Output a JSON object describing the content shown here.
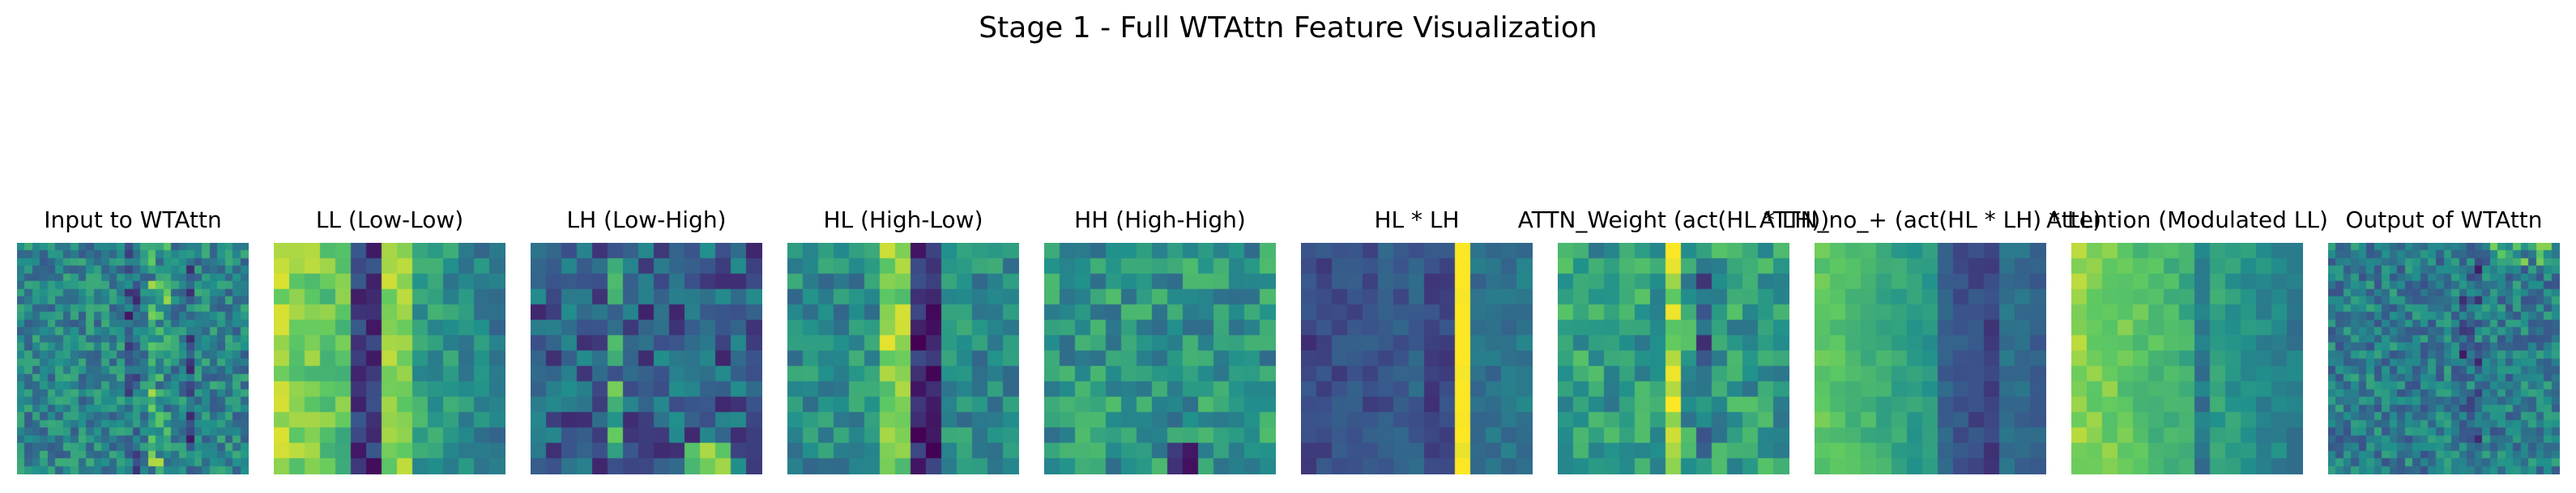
{
  "figure": {
    "title": "Stage 1 - Full WTAttn Feature Visualization"
  },
  "colormap": "viridis",
  "colormap_stops": [
    "#440154",
    "#3b528b",
    "#21918c",
    "#5ec962",
    "#fde725"
  ],
  "panels": [
    {
      "title": "Input to WTAttn",
      "grid": 30,
      "pattern": "input"
    },
    {
      "title": "LL (Low-Low)",
      "grid": 15,
      "pattern": "ll"
    },
    {
      "title": "LH (Low-High)",
      "grid": 15,
      "pattern": "lh"
    },
    {
      "title": "HL (High-Low)",
      "grid": 15,
      "pattern": "hl"
    },
    {
      "title": "HH (High-High)",
      "grid": 15,
      "pattern": "hh"
    },
    {
      "title": "HL * LH",
      "grid": 15,
      "pattern": "hllh"
    },
    {
      "title": "ATTN_Weight (act(HL * LH))",
      "grid": 15,
      "pattern": "attn"
    },
    {
      "title": "ATTN_no_+ (act(HL * LH) * LL)",
      "grid": 15,
      "pattern": "attnno"
    },
    {
      "title": "Attention (Modulated LL)",
      "grid": 15,
      "pattern": "modll"
    },
    {
      "title": "Output of WTAttn",
      "grid": 30,
      "pattern": "output"
    }
  ]
}
